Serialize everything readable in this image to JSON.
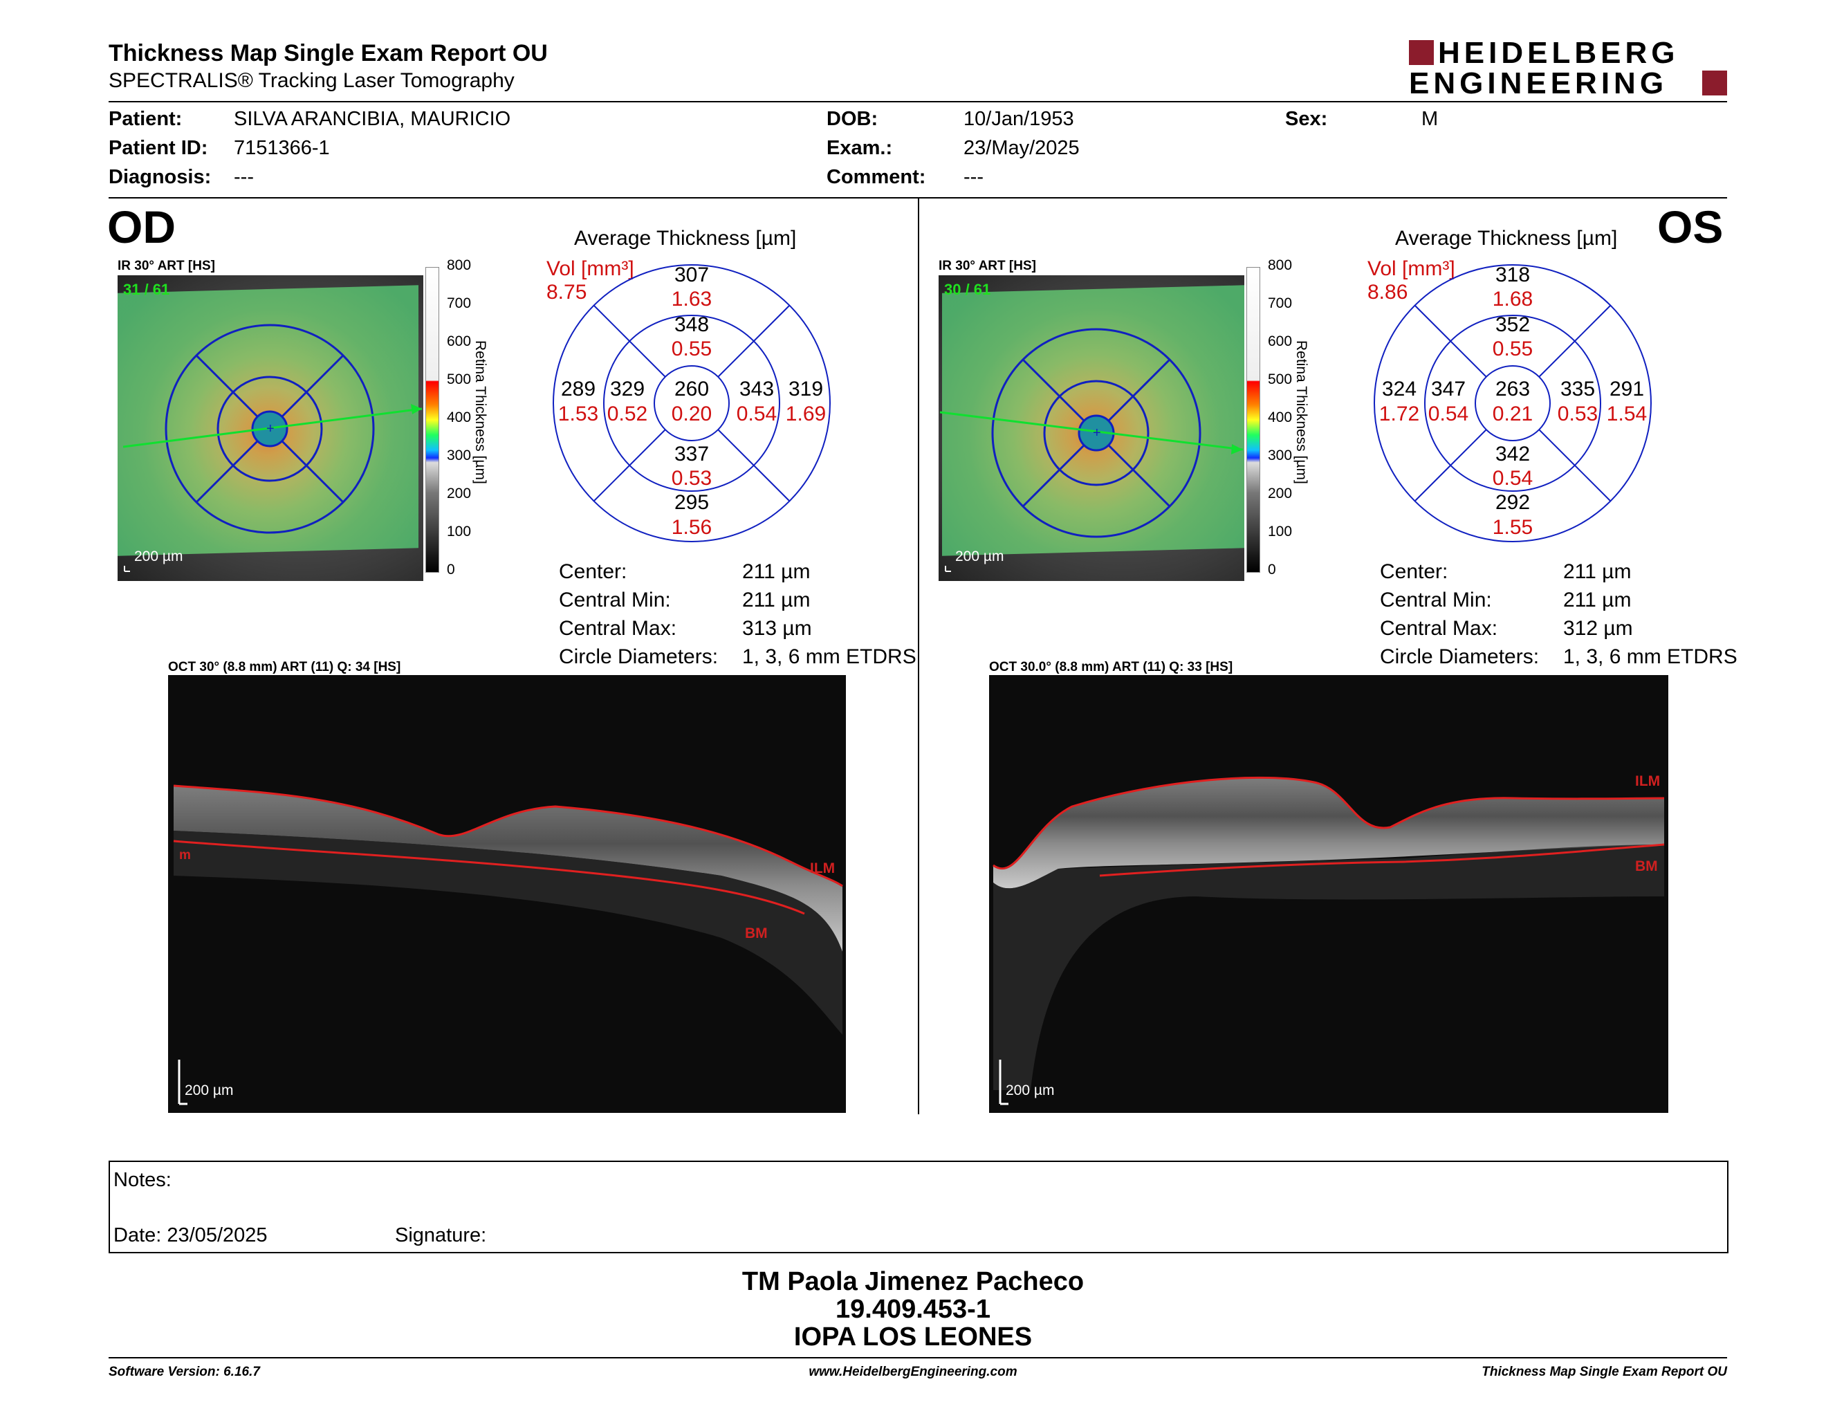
{
  "header": {
    "title": "Thickness Map Single Exam Report OU",
    "subtitle": "SPECTRALIS® Tracking Laser Tomography",
    "logo_line1": "HEIDELBERG",
    "logo_line2": "ENGINEERING",
    "brand_color": "#8b1c2c"
  },
  "patient": {
    "patient_label": "Patient:",
    "patient_value": "SILVA ARANCIBIA, MAURICIO",
    "id_label": "Patient ID:",
    "id_value": "7151366-1",
    "diagnosis_label": "Diagnosis:",
    "diagnosis_value": "---",
    "dob_label": "DOB:",
    "dob_value": "10/Jan/1953",
    "exam_label": "Exam.:",
    "exam_value": "23/May/2025",
    "comment_label": "Comment:",
    "comment_value": "---",
    "sex_label": "Sex:",
    "sex_value": "M"
  },
  "scale": {
    "title": "Retina Thickness [µm]",
    "ticks": [
      "800",
      "700",
      "600",
      "500",
      "400",
      "300",
      "200",
      "100",
      "0"
    ]
  },
  "od": {
    "label": "OD",
    "fundus_caption": "IR 30° ART [HS]",
    "frame_count": "31 / 61",
    "fundus_scalebar": "200 µm",
    "chart_title": "Average Thickness [µm]",
    "vol_label": "Vol [mm³]",
    "vol_value": "8.75",
    "grid": {
      "center_t": "260",
      "center_v": "0.20",
      "inner_sup_t": "348",
      "inner_sup_v": "0.55",
      "inner_inf_t": "337",
      "inner_inf_v": "0.53",
      "inner_left_t": "329",
      "inner_left_v": "0.52",
      "inner_right_t": "343",
      "inner_right_v": "0.54",
      "outer_sup_t": "307",
      "outer_sup_v": "1.63",
      "outer_inf_t": "295",
      "outer_inf_v": "1.56",
      "outer_left_t": "289",
      "outer_left_v": "1.53",
      "outer_right_t": "319",
      "outer_right_v": "1.69"
    },
    "center_label": "Center:",
    "center_value": "211 µm",
    "cmin_label": "Central Min:",
    "cmin_value": "211 µm",
    "cmax_label": "Central Max:",
    "cmax_value": "313 µm",
    "circ_label": "Circle Diameters:",
    "circ_value": "1, 3, 6 mm ETDRS",
    "oct_caption": "OCT 30° (8.8 mm) ART (11) Q: 34 [HS]",
    "oct_scalebar": "200 µm",
    "ilm": "ILM",
    "bm": "BM",
    "m_label": "m"
  },
  "os": {
    "label": "OS",
    "fundus_caption": "IR 30° ART [HS]",
    "frame_count": "30 / 61",
    "fundus_scalebar": "200 µm",
    "chart_title": "Average Thickness [µm]",
    "vol_label": "Vol [mm³]",
    "vol_value": "8.86",
    "grid": {
      "center_t": "263",
      "center_v": "0.21",
      "inner_sup_t": "352",
      "inner_sup_v": "0.55",
      "inner_inf_t": "342",
      "inner_inf_v": "0.54",
      "inner_left_t": "347",
      "inner_left_v": "0.54",
      "inner_right_t": "335",
      "inner_right_v": "0.53",
      "outer_sup_t": "318",
      "outer_sup_v": "1.68",
      "outer_inf_t": "292",
      "outer_inf_v": "1.55",
      "outer_left_t": "324",
      "outer_left_v": "1.72",
      "outer_right_t": "291",
      "outer_right_v": "1.54"
    },
    "center_label": "Center:",
    "center_value": "211 µm",
    "cmin_label": "Central Min:",
    "cmin_value": "211 µm",
    "cmax_label": "Central Max:",
    "cmax_value": "312 µm",
    "circ_label": "Circle Diameters:",
    "circ_value": "1, 3, 6 mm ETDRS",
    "oct_caption": "OCT 30.0° (8.8 mm) ART (11) Q: 33 [HS]",
    "oct_scalebar": "200 µm",
    "ilm": "ILM",
    "bm": "BM"
  },
  "notes": {
    "notes_label": "Notes:",
    "date_label": "Date: 23/05/2025",
    "signature_label": "Signature:"
  },
  "signature_block": {
    "name": "TM Paola Jimenez Pacheco",
    "rut": "19.409.453-1",
    "institution": "IOPA LOS LEONES"
  },
  "footer": {
    "software": "Software Version: 6.16.7",
    "url": "www.HeidelbergEngineering.com",
    "report": "Thickness Map Single Exam Report OU"
  }
}
